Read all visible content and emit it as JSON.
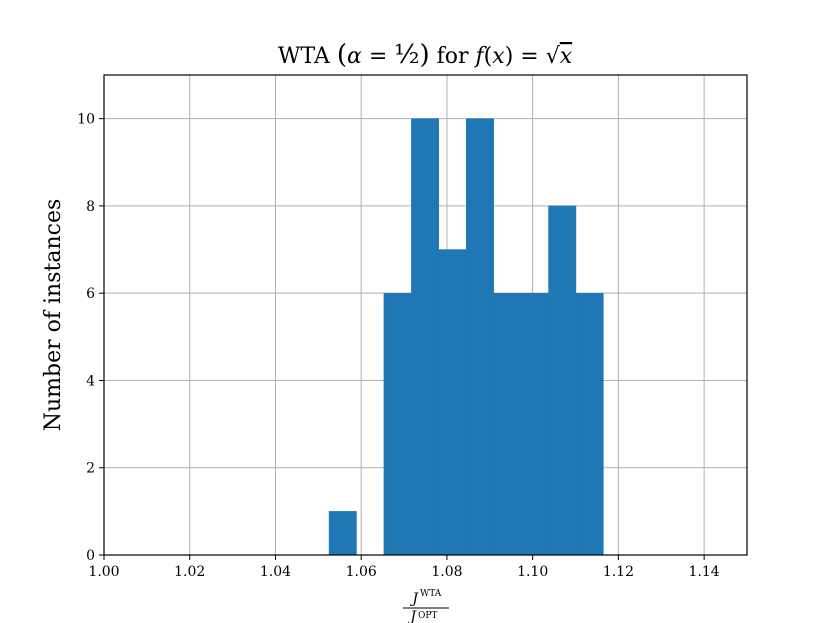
{
  "chart_data": {
    "type": "bar",
    "subtype": "histogram",
    "title": "WTA (α = ½) for f(x) = √x",
    "xlabel": {
      "numerator": "J",
      "numerator_sup": "WTA",
      "denominator": "J",
      "denominator_sup": "OPT"
    },
    "ylabel": "Number of instances",
    "xlim": [
      1.0,
      1.15
    ],
    "ylim": [
      0,
      11
    ],
    "xticks": [
      "1.00",
      "1.02",
      "1.04",
      "1.06",
      "1.08",
      "1.10",
      "1.12",
      "1.14"
    ],
    "yticks": [
      "0",
      "2",
      "4",
      "6",
      "8",
      "10"
    ],
    "grid": true,
    "color": "#1f77b4",
    "bins": [
      {
        "start": 1.0525,
        "end": 1.0589,
        "count": 1
      },
      {
        "start": 1.0653,
        "end": 1.0717,
        "count": 6
      },
      {
        "start": 1.0717,
        "end": 1.0781,
        "count": 10
      },
      {
        "start": 1.0781,
        "end": 1.0845,
        "count": 7
      },
      {
        "start": 1.0845,
        "end": 1.0909,
        "count": 10
      },
      {
        "start": 1.0909,
        "end": 1.0973,
        "count": 6
      },
      {
        "start": 1.0973,
        "end": 1.1037,
        "count": 6
      },
      {
        "start": 1.1037,
        "end": 1.1101,
        "count": 8
      },
      {
        "start": 1.1101,
        "end": 1.1165,
        "count": 6
      }
    ]
  }
}
